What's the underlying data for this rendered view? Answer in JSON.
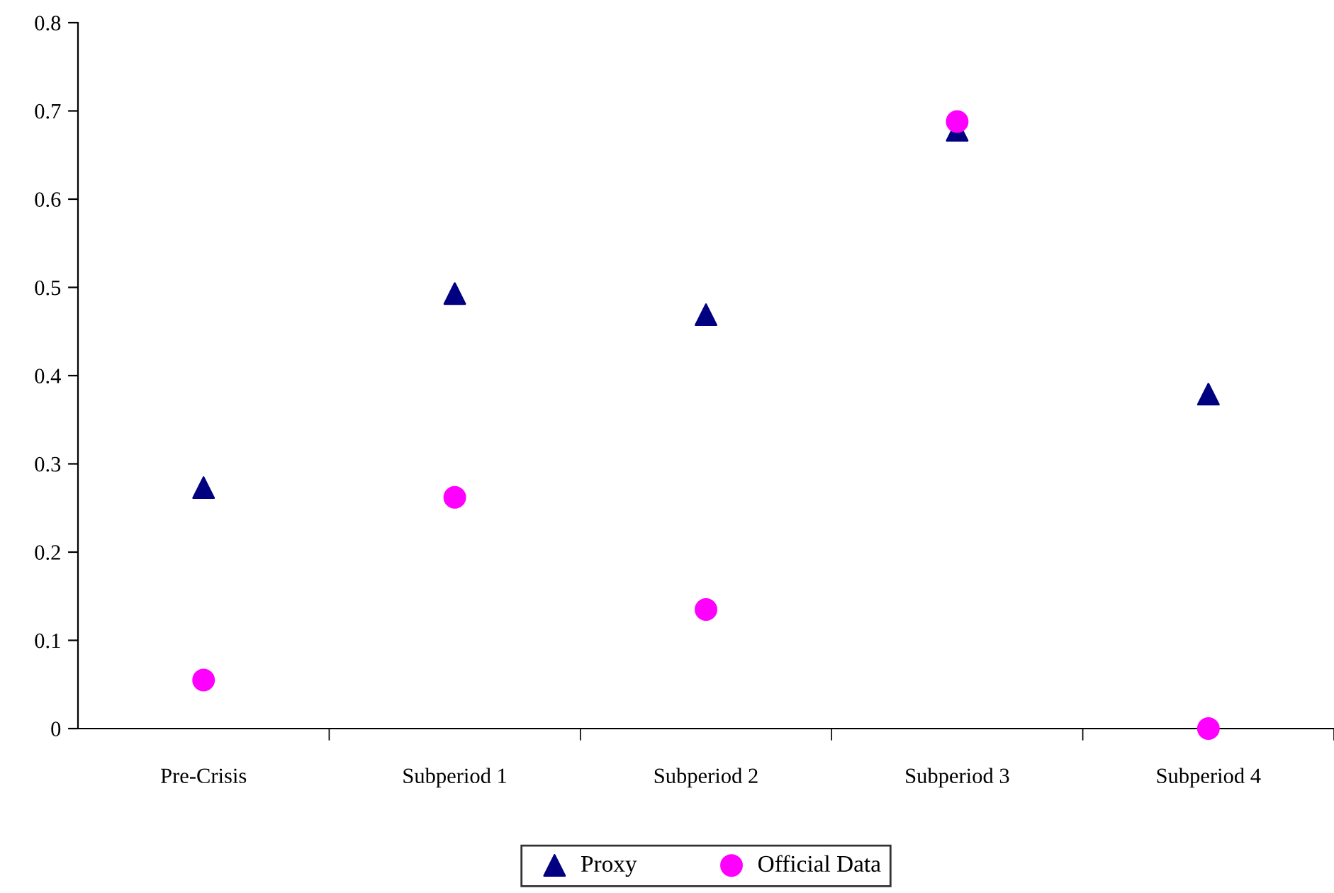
{
  "chart_data": {
    "type": "scatter",
    "categories": [
      "Pre-Crisis",
      "Subperiod 1",
      "Subperiod 2",
      "Subperiod 3",
      "Subperiod 4"
    ],
    "series": [
      {
        "name": "Proxy",
        "color": "#000080",
        "marker": "triangle",
        "values": [
          0.273,
          0.493,
          0.469,
          0.678,
          0.379
        ]
      },
      {
        "name": "Official Data",
        "color": "#ff00ff",
        "marker": "circle",
        "values": [
          0.055,
          0.262,
          0.135,
          0.688,
          0.0
        ]
      }
    ],
    "ylim": [
      0,
      0.8
    ],
    "yticks": [
      0,
      0.1,
      0.2,
      0.3,
      0.4,
      0.5,
      0.6,
      0.7,
      0.8
    ],
    "grid": false,
    "legend": "bottom"
  }
}
